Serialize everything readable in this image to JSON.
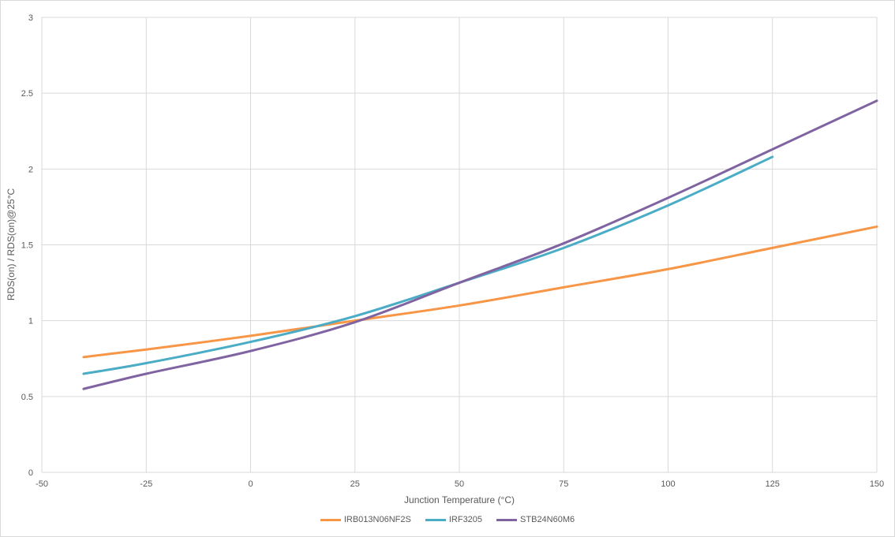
{
  "chart_data": {
    "type": "line",
    "title": "",
    "xlabel": "Junction Temperature (°C)",
    "ylabel": "RDS(on) / RDS(on)@25°C",
    "xlim": [
      -50,
      150
    ],
    "ylim": [
      0,
      3
    ],
    "x_ticks": [
      "-50",
      "-25",
      "0",
      "25",
      "50",
      "75",
      "100",
      "125",
      "150"
    ],
    "y_ticks": [
      "0",
      "0.5",
      "1",
      "1.5",
      "2",
      "2.5",
      "3"
    ],
    "grid": true,
    "legend_position": "bottom",
    "series": [
      {
        "name": "IRB013N06NF2S",
        "color": "#F79646",
        "x": [
          -40,
          -25,
          0,
          25,
          50,
          75,
          100,
          125,
          150
        ],
        "values": [
          0.76,
          0.81,
          0.9,
          1.0,
          1.1,
          1.22,
          1.34,
          1.48,
          1.62
        ]
      },
      {
        "name": "IRF3205",
        "color": "#4BACC6",
        "x": [
          -40,
          -25,
          0,
          25,
          50,
          75,
          100,
          125
        ],
        "values": [
          0.65,
          0.72,
          0.86,
          1.03,
          1.25,
          1.48,
          1.76,
          2.08
        ]
      },
      {
        "name": "STB24N60M6",
        "color": "#8064A2",
        "x": [
          -40,
          -25,
          0,
          25,
          50,
          75,
          100,
          125,
          150
        ],
        "values": [
          0.55,
          0.65,
          0.8,
          0.99,
          1.25,
          1.51,
          1.81,
          2.13,
          2.45
        ]
      }
    ]
  },
  "legend": {
    "items": [
      {
        "label": "IRB013N06NF2S",
        "color": "#F79646"
      },
      {
        "label": "IRF3205",
        "color": "#4BACC6"
      },
      {
        "label": "STB24N60M6",
        "color": "#8064A2"
      }
    ]
  }
}
